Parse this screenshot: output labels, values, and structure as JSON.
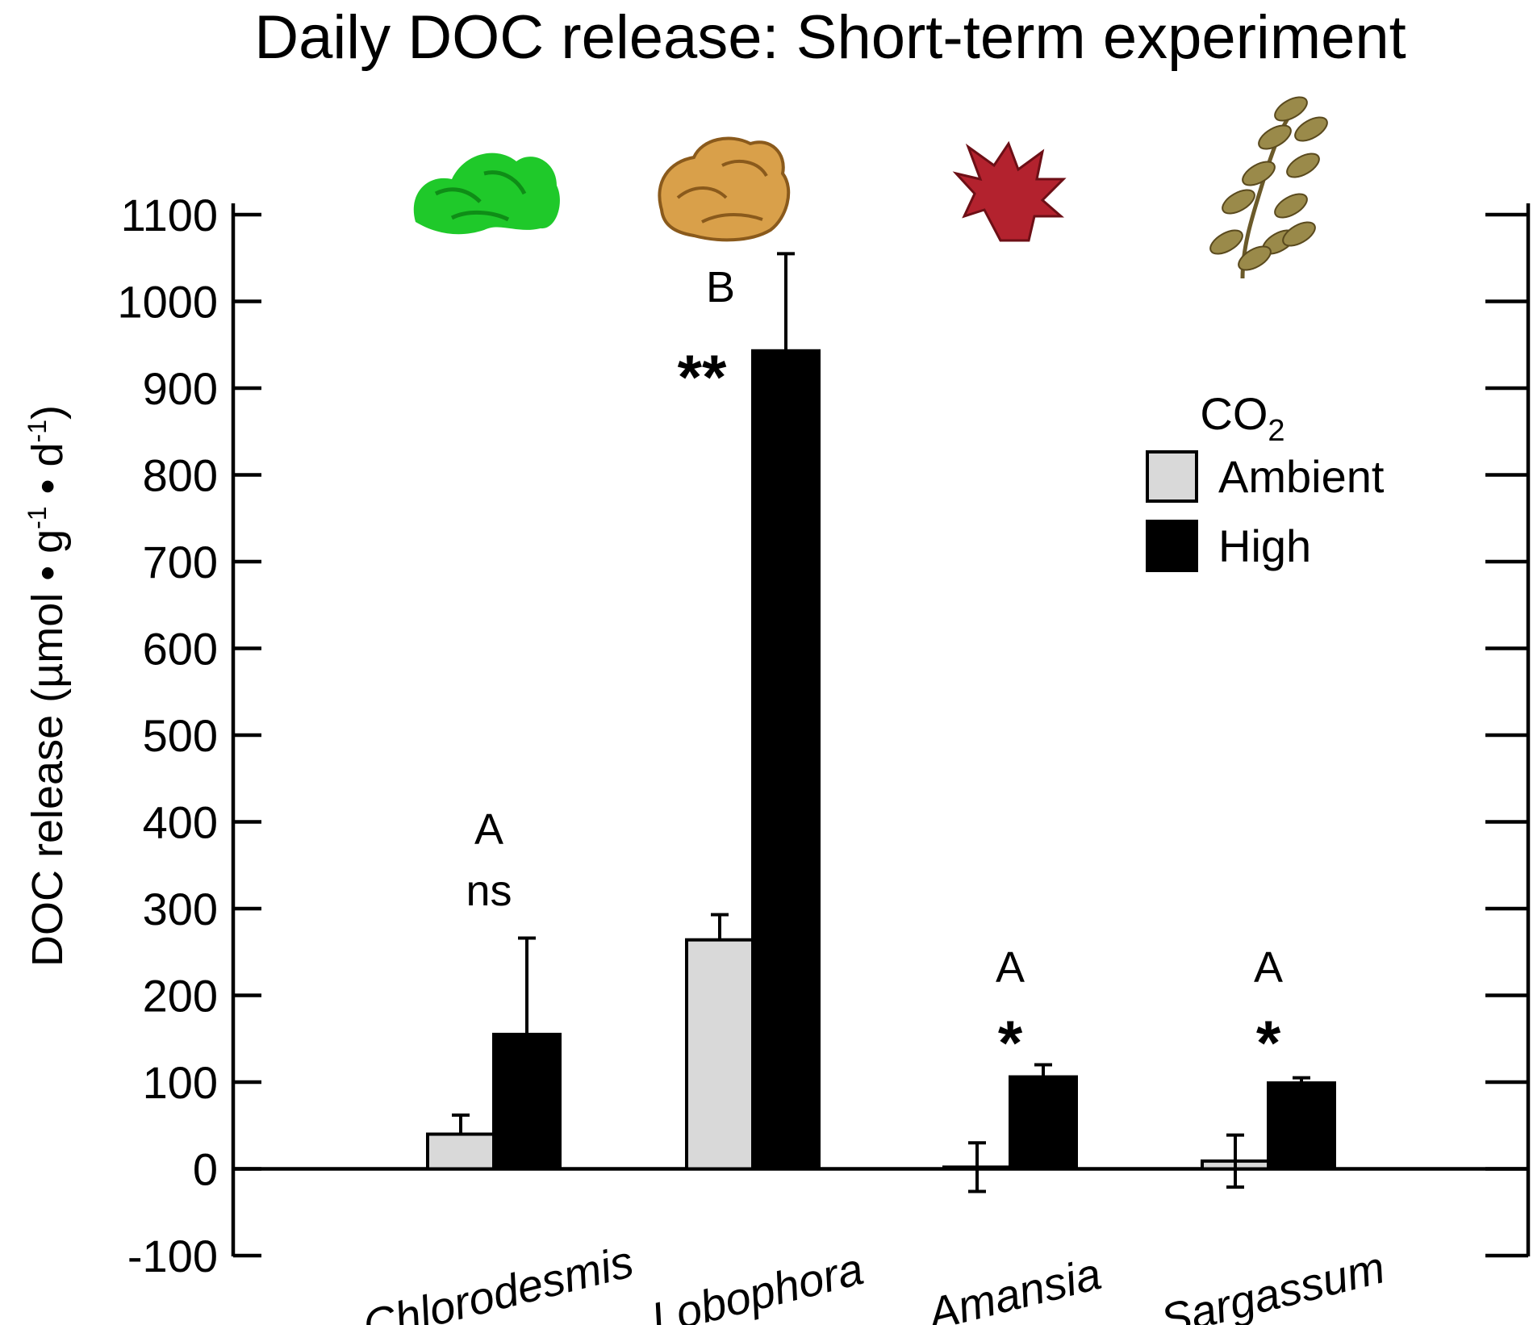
{
  "chart_data": {
    "type": "bar",
    "title": "Daily DOC release: Short-term experiment",
    "ylabel": "DOC release (µmol • g-1 • d-1)",
    "ylabel_parts": {
      "prefix": "DOC release (µmol • g",
      "exp1": "-1",
      "mid": " • d",
      "exp2": "-1",
      "suffix": ")"
    },
    "xlabel": "",
    "ylim": [
      -100,
      1100
    ],
    "yticks": [
      -100,
      0,
      100,
      200,
      300,
      400,
      500,
      600,
      700,
      800,
      900,
      1000,
      1100
    ],
    "categories": [
      "Chlorodesmis",
      "Lobophora",
      "Amansia",
      "Sargassum"
    ],
    "legend": {
      "title": "CO",
      "title_sub": "2",
      "placement": "upper-right"
    },
    "series": [
      {
        "name": "Ambient",
        "color": "#d9d9d9",
        "values": [
          40,
          264,
          2,
          9
        ],
        "errors": [
          22,
          29,
          28,
          30
        ]
      },
      {
        "name": "High",
        "color": "#000000",
        "values": [
          155,
          943,
          106,
          99
        ],
        "errors": [
          111,
          112,
          14,
          6
        ]
      }
    ],
    "annotations": [
      {
        "group": "A",
        "sig": "ns"
      },
      {
        "group": "B",
        "sig": "**"
      },
      {
        "group": "A",
        "sig": "*"
      },
      {
        "group": "A",
        "sig": "*"
      }
    ],
    "icons": [
      "green-algae-icon",
      "brown-lobophora-icon",
      "red-algae-icon",
      "sargassum-icon"
    ]
  }
}
